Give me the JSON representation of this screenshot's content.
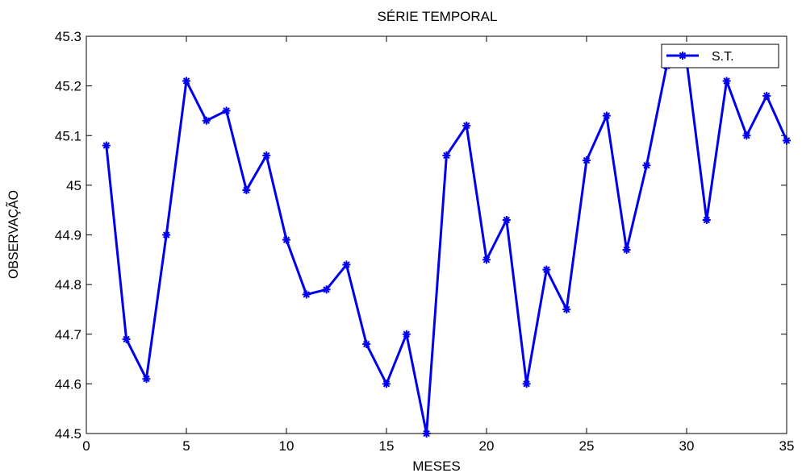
{
  "chart_data": {
    "type": "line",
    "title": "SÉRIE TEMPORAL",
    "xlabel": "MESES",
    "ylabel": "OBSERVAÇÃO",
    "xlim": [
      0,
      35
    ],
    "ylim": [
      44.5,
      45.3
    ],
    "xticks": [
      0,
      5,
      10,
      15,
      20,
      25,
      30,
      35
    ],
    "yticks": [
      44.5,
      44.6,
      44.7,
      44.8,
      44.9,
      45,
      45.1,
      45.2,
      45.3
    ],
    "xtick_labels": [
      "0",
      "5",
      "10",
      "15",
      "20",
      "25",
      "30",
      "35"
    ],
    "ytick_labels": [
      "44.5",
      "44.6",
      "44.7",
      "44.8",
      "44.9",
      "45",
      "45.1",
      "45.2",
      "45.3"
    ],
    "grid": false,
    "legend": {
      "placement": "top-right",
      "entries": [
        "S.T."
      ]
    },
    "series": [
      {
        "name": "S.T.",
        "color": "#0000ee",
        "marker": "star",
        "x": [
          1,
          2,
          3,
          4,
          5,
          6,
          7,
          8,
          9,
          10,
          11,
          12,
          13,
          14,
          15,
          16,
          17,
          18,
          19,
          20,
          21,
          22,
          23,
          24,
          25,
          26,
          27,
          28,
          29,
          30,
          31,
          32,
          33,
          34,
          35
        ],
        "values": [
          45.08,
          44.69,
          44.61,
          44.9,
          45.21,
          45.13,
          45.15,
          44.99,
          45.06,
          44.89,
          44.78,
          44.79,
          44.84,
          44.68,
          44.6,
          44.7,
          44.5,
          45.06,
          45.12,
          44.85,
          44.93,
          44.6,
          44.83,
          44.75,
          45.05,
          45.14,
          44.87,
          45.04,
          45.24,
          45.25,
          44.93,
          45.21,
          45.1,
          45.18,
          45.09
        ]
      }
    ]
  }
}
